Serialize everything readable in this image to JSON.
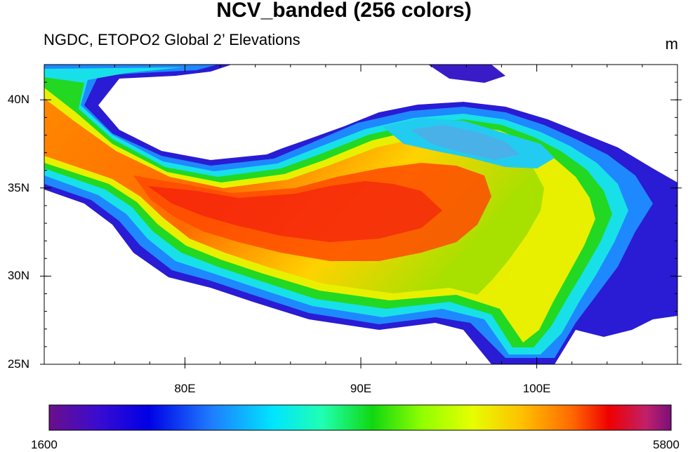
{
  "title": "NCV_banded (256 colors)",
  "subtitle": "NGDC, ETOPO2 Global 2’ Elevations",
  "units": "m",
  "map": {
    "lon_range": [
      72,
      108
    ],
    "lat_range": [
      25,
      42
    ],
    "y_ticks": [
      {
        "value": 25,
        "label": "25N"
      },
      {
        "value": 30,
        "label": "30N"
      },
      {
        "value": 35,
        "label": "35N"
      },
      {
        "value": 40,
        "label": "40N"
      }
    ],
    "x_ticks": [
      {
        "value": 80,
        "label": "80E"
      },
      {
        "value": 90,
        "label": "90E"
      },
      {
        "value": 100,
        "label": "100E"
      }
    ]
  },
  "colorbar": {
    "min_label": "1600",
    "max_label": "5800",
    "colormap": "NCV_banded",
    "n_colors": 256
  }
}
